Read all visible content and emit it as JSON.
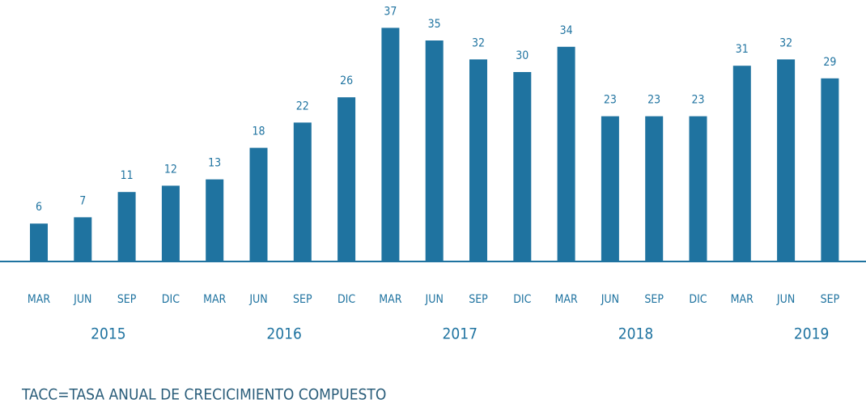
{
  "chart_data": {
    "type": "bar",
    "categories": [
      "MAR",
      "JUN",
      "SEP",
      "DIC",
      "MAR",
      "JUN",
      "SEP",
      "DIC",
      "MAR",
      "JUN",
      "SEP",
      "DIC",
      "MAR",
      "JUN",
      "SEP",
      "DIC",
      "MAR",
      "JUN",
      "SEP"
    ],
    "values": [
      6,
      7,
      11,
      12,
      13,
      18,
      22,
      26,
      37,
      35,
      32,
      30,
      34,
      23,
      23,
      23,
      31,
      32,
      29
    ],
    "year_labels": [
      "2015",
      "2016",
      "2017",
      "2018",
      "2019"
    ],
    "note": "TACC=TASA ANUAL DE CRECICIMIENTO COMPUESTO",
    "color": "#1f73a0"
  }
}
